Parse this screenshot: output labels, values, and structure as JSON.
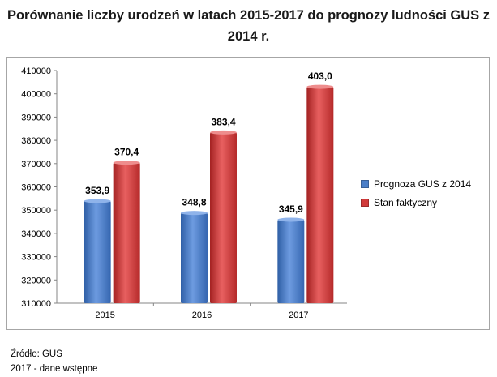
{
  "title_line1": "Porównanie liczby urodzeń w latach 2015-2017 do prognozy ludności GUS z",
  "title_line2": "2014 r.",
  "source_line1": "Źródło: GUS",
  "source_line2": "2017 - dane wstępne",
  "colors": {
    "blue": "#4a7ec8",
    "red": "#d13a3a"
  },
  "chart_data": {
    "type": "bar",
    "categories": [
      "2015",
      "2016",
      "2017"
    ],
    "series": [
      {
        "name": "Prognoza GUS z 2014",
        "values": [
          353900,
          348800,
          345900
        ],
        "labels": [
          "353,9",
          "348,8",
          "345,9"
        ]
      },
      {
        "name": "Stan faktyczny",
        "values": [
          370400,
          383400,
          403000
        ],
        "labels": [
          "370,4",
          "383,4",
          "403,0"
        ]
      }
    ],
    "yticks": [
      "310000",
      "320000",
      "330000",
      "340000",
      "350000",
      "360000",
      "370000",
      "380000",
      "390000",
      "400000",
      "410000"
    ],
    "ylim": [
      310000,
      410000
    ],
    "grid": false,
    "legend_position": "right"
  }
}
